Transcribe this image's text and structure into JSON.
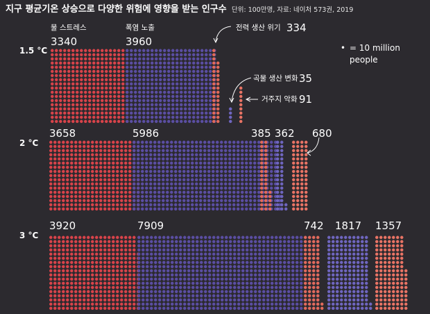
{
  "title": "지구 평균기온 상승으로 다양한 위험에 영향을 받는 인구수",
  "source": "단위: 100만명, 자료: 네이처 573권, 2019",
  "legend": {
    "dot": "•",
    "text_line1": "= 10 million",
    "text_line2": "people"
  },
  "colors": {
    "background": "#2c2a2f",
    "water_stress": "#d9434a",
    "heat_exposure": "#5b4ea3",
    "energy_risk": "#e26a5a",
    "crop_yield": "#6f66c0",
    "habitat_degradation": "#ea7465"
  },
  "chart_data": {
    "type": "dot-matrix",
    "title": "지구 평균기온 상승으로 다양한 위험에 영향을 받는 인구수",
    "unit": "100만명",
    "dot_value": "10 million people",
    "scenarios": [
      "1.5 °C",
      "2 °C",
      "3 °C"
    ],
    "categories": [
      {
        "key": "water_stress",
        "label": "물 스트레스"
      },
      {
        "key": "heat_exposure",
        "label": "폭염 노출"
      },
      {
        "key": "energy_risk",
        "label": "전력 생산 위기"
      },
      {
        "key": "crop_yield",
        "label": "곡물 생산 변화"
      },
      {
        "key": "habitat_degradation",
        "label": "거주지 악화"
      }
    ],
    "series": [
      {
        "scenario": "1.5 °C",
        "values": [
          3340,
          3960,
          334,
          35,
          91
        ]
      },
      {
        "scenario": "2 °C",
        "values": [
          3658,
          5986,
          385,
          362,
          680
        ]
      },
      {
        "scenario": "3 °C",
        "values": [
          3920,
          7909,
          742,
          1817,
          1357
        ]
      }
    ]
  }
}
